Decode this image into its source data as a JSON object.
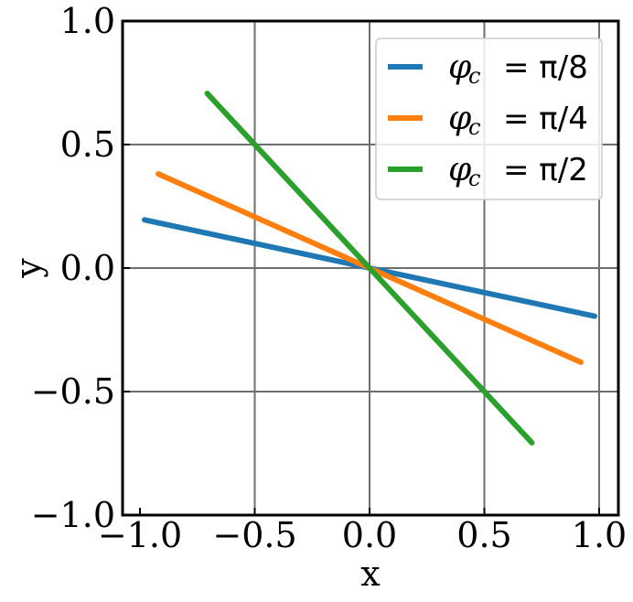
{
  "chart_data": {
    "type": "line",
    "xlabel": "x",
    "ylabel": "y",
    "xlim": [
      -1.0,
      1.0
    ],
    "ylim": [
      -1.0,
      1.0
    ],
    "x_ticks": [
      -1.0,
      -0.5,
      0.0,
      0.5,
      1.0
    ],
    "y_ticks": [
      -1.0,
      -0.5,
      0.0,
      0.5,
      1.0
    ],
    "x_tick_labels": [
      "−1.0",
      "−0.5",
      "0.0",
      "0.5",
      "1.0"
    ],
    "y_tick_labels": [
      "−1.0",
      "−0.5",
      "0.0",
      "0.5",
      "1.0"
    ],
    "grid": true,
    "legend_position": "top-right",
    "series": [
      {
        "name": "φc = π/8",
        "symbol": "φ",
        "subscript": "c",
        "value_text": "= π/8",
        "color": "#1f77b4",
        "x": [
          -0.98,
          0.98
        ],
        "y": [
          0.195,
          -0.195
        ]
      },
      {
        "name": "φc = π/4",
        "symbol": "φ",
        "subscript": "c",
        "value_text": "= π/4",
        "color": "#ff7f0e",
        "x": [
          -0.92,
          0.92
        ],
        "y": [
          0.381,
          -0.381
        ]
      },
      {
        "name": "φc = π/2",
        "symbol": "φ",
        "subscript": "c",
        "value_text": "= π/2",
        "color": "#2ca02c",
        "x": [
          -0.707,
          0.707
        ],
        "y": [
          0.707,
          -0.707
        ]
      }
    ]
  }
}
